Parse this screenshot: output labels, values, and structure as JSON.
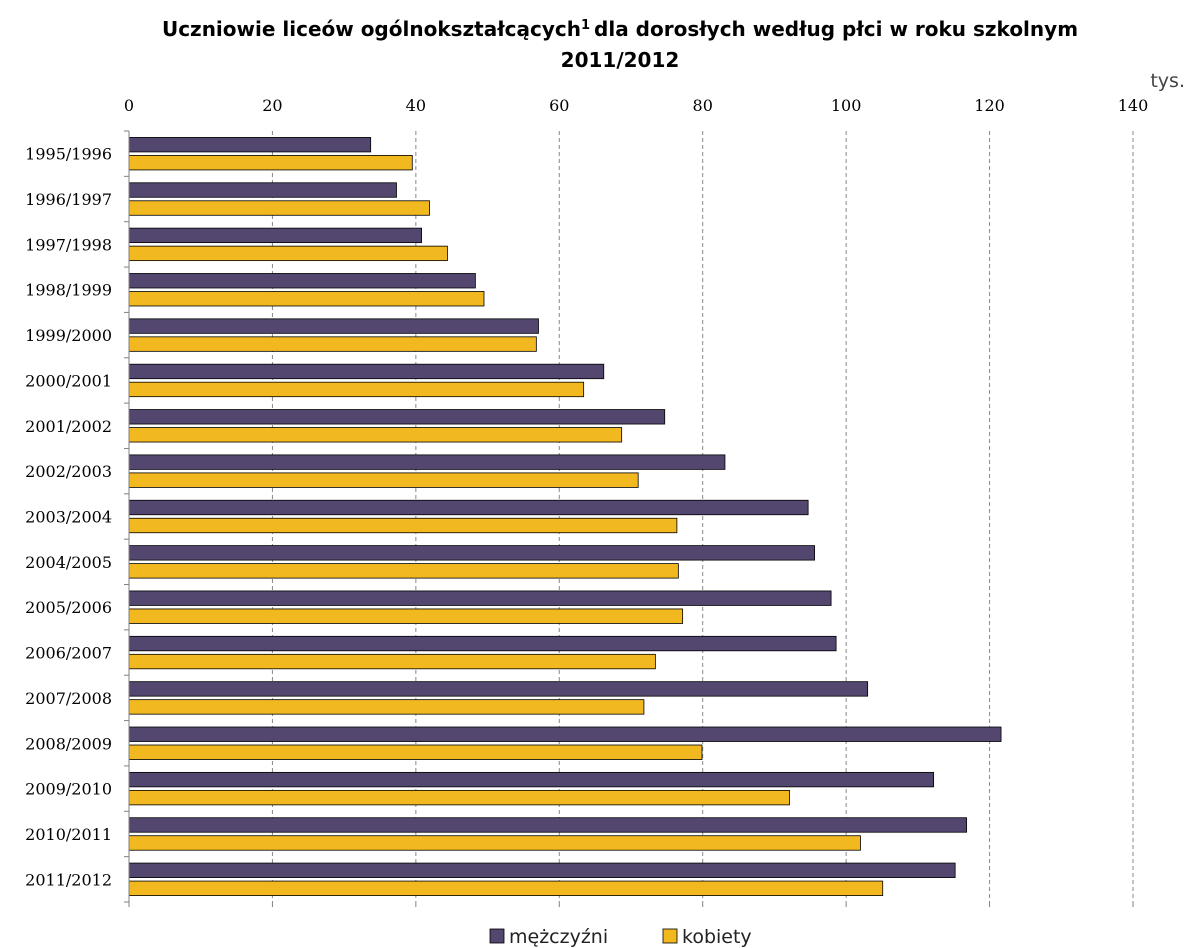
{
  "title_line1": "Uczniowie liceów ogólnokształcących",
  "title_sup": "1",
  "title_line1_rest": "dla dorosłych według płci w roku szkolnym",
  "title_line2": "2011/2012",
  "unit": "tys.",
  "colors": {
    "mezczyzni": "#54476f",
    "kobiety": "#f2b81f",
    "grid": "#888888",
    "axis": "#808080",
    "bar_stroke": "#000000"
  },
  "chart_data": {
    "type": "bar",
    "orientation": "horizontal",
    "xlim": [
      0,
      140
    ],
    "x_ticks": [
      "0",
      "20",
      "40",
      "60",
      "80",
      "100",
      "120",
      "140"
    ],
    "grid": true,
    "legend_position": "bottom",
    "categories": [
      "1995/1996",
      "1996/1997",
      "1997/1998",
      "1998/1999",
      "1999/2000",
      "2000/2001",
      "2001/2002",
      "2002/2003",
      "2003/2004",
      "2004/2005",
      "2005/2006",
      "2006/2007",
      "2007/2008",
      "2008/2009",
      "2009/2010",
      "2010/2011",
      "2011/2012"
    ],
    "series": [
      {
        "name": "mężczyźni",
        "values": [
          33.7,
          37.3,
          40.8,
          48.3,
          57.1,
          66.2,
          74.7,
          83.1,
          94.7,
          95.6,
          97.9,
          98.6,
          103.0,
          121.6,
          112.2,
          116.8,
          115.2
        ]
      },
      {
        "name": "kobiety",
        "values": [
          39.5,
          41.9,
          44.4,
          49.5,
          56.8,
          63.4,
          68.7,
          71.0,
          76.4,
          76.6,
          77.2,
          73.4,
          71.8,
          79.9,
          92.1,
          102.0,
          105.1
        ]
      }
    ]
  }
}
